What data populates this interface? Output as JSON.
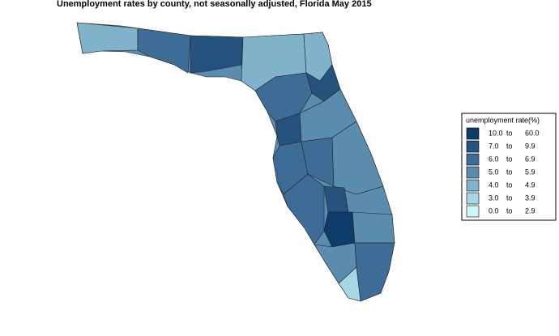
{
  "title": "Unemployment rates by county, not seasonally adjusted,  Florida  May 2015",
  "legend": {
    "title": "unemployment rate(%)",
    "items": [
      {
        "low": "10.0",
        "sep": "to",
        "high": "60.0",
        "color": "#0d3c6a"
      },
      {
        "low": "7.0",
        "sep": "to",
        "high": "9.9",
        "color": "#26537e"
      },
      {
        "low": "6.0",
        "sep": "to",
        "high": "6.9",
        "color": "#3d6d97"
      },
      {
        "low": "5.0",
        "sep": "to",
        "high": "5.9",
        "color": "#5a8cae"
      },
      {
        "low": "4.0",
        "sep": "to",
        "high": "4.9",
        "color": "#80b2cb"
      },
      {
        "low": "3.0",
        "sep": "to",
        "high": "3.9",
        "color": "#a7d7e4"
      },
      {
        "low": "0.0",
        "sep": "to",
        "high": "2.9",
        "color": "#cef7f8"
      }
    ]
  }
}
